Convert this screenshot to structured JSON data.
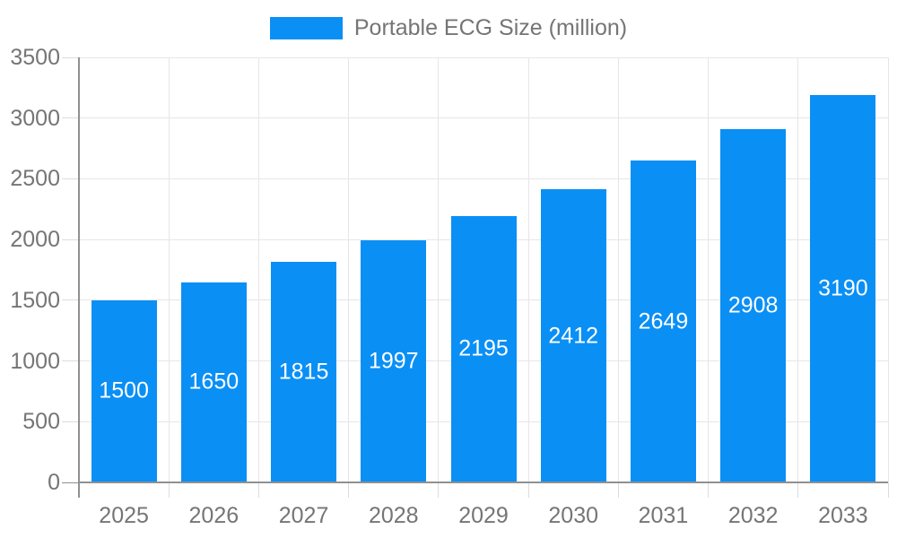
{
  "chart_data": {
    "type": "bar",
    "title": "Portable ECG Size (million)",
    "categories": [
      "2025",
      "2026",
      "2027",
      "2028",
      "2029",
      "2030",
      "2031",
      "2032",
      "2033"
    ],
    "values": [
      1500,
      1650,
      1815,
      1997,
      2195,
      2412,
      2649,
      2908,
      3190
    ],
    "xlabel": "",
    "ylabel": "",
    "ylim": [
      0,
      3500
    ],
    "yticks": [
      0,
      500,
      1000,
      1500,
      2000,
      2500,
      3000,
      3500
    ],
    "grid": true,
    "legend_position": "top-center",
    "value_labels": "centered-inside-bars-white",
    "colors": {
      "bar": "#0A8FF5",
      "axis_line": "#909090",
      "grid_line": "#e6e6e6",
      "tick_line": "#dcdcdc",
      "axis_label": "#757575",
      "value_label": "#ffffff",
      "background": "#ffffff"
    }
  },
  "legend": {
    "label": "Portable ECG Size (million)"
  }
}
